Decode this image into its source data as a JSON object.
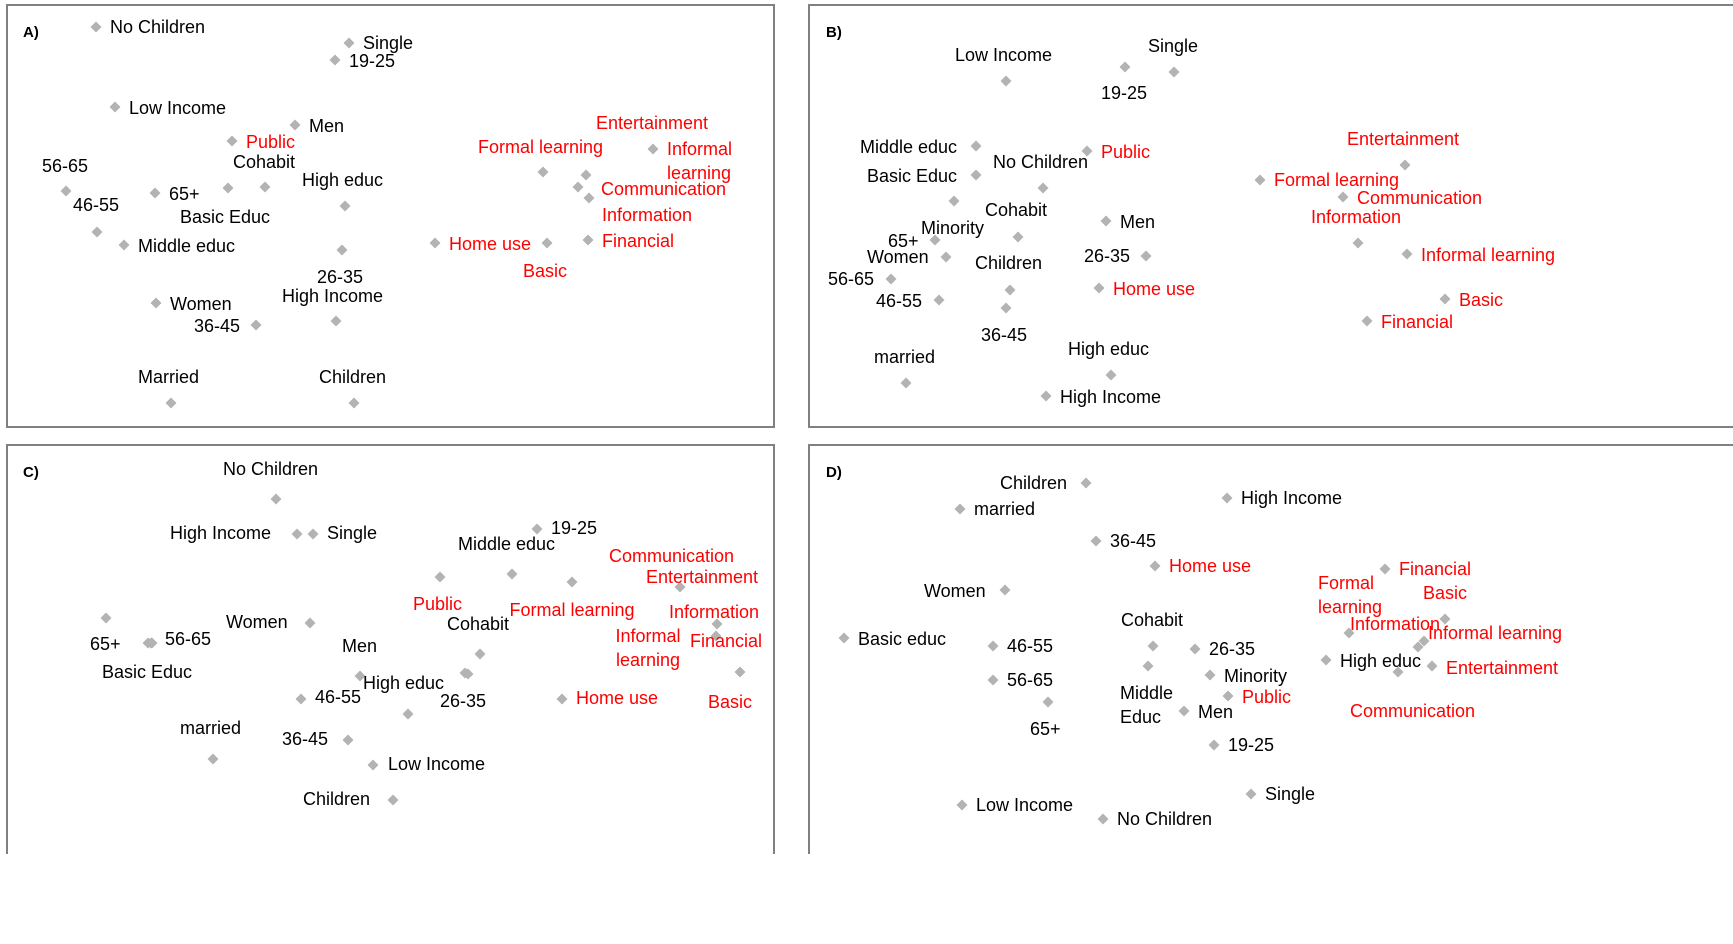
{
  "colors": {
    "marker": "#b3b3b3",
    "demographic": "#000000",
    "usage": "#ff0000",
    "frame": "#808080"
  },
  "chart_data": [
    {
      "type": "scatter",
      "panel_label": "A)",
      "points": [
        {
          "label": "No Children",
          "group": "demographic"
        },
        {
          "label": "Single",
          "group": "demographic"
        },
        {
          "label": "19-25",
          "group": "demographic"
        },
        {
          "label": "Low Income",
          "group": "demographic"
        },
        {
          "label": "Men",
          "group": "demographic"
        },
        {
          "label": "Public",
          "group": "usage"
        },
        {
          "label": "Cohabit",
          "group": "demographic"
        },
        {
          "label": "56-65",
          "group": "demographic"
        },
        {
          "label": "65+",
          "group": "demographic"
        },
        {
          "label": "Basic Educ",
          "group": "demographic"
        },
        {
          "label": "46-55",
          "group": "demographic"
        },
        {
          "label": "High educ",
          "group": "demographic"
        },
        {
          "label": "Middle educ",
          "group": "demographic"
        },
        {
          "label": "26-35",
          "group": "demographic"
        },
        {
          "label": "Women",
          "group": "demographic"
        },
        {
          "label": "High Income",
          "group": "demographic"
        },
        {
          "label": "36-45",
          "group": "demographic"
        },
        {
          "label": "Married",
          "group": "demographic"
        },
        {
          "label": "Children",
          "group": "demographic"
        },
        {
          "label": "Formal learning",
          "group": "usage"
        },
        {
          "label": "Entertainment",
          "group": "usage"
        },
        {
          "label": "Informal learning",
          "group": "usage"
        },
        {
          "label": "Communication",
          "group": "usage"
        },
        {
          "label": "Information",
          "group": "usage"
        },
        {
          "label": "Home use",
          "group": "usage"
        },
        {
          "label": "Basic",
          "group": "usage"
        },
        {
          "label": "Financial",
          "group": "usage"
        }
      ]
    },
    {
      "type": "scatter",
      "panel_label": "B)",
      "points": [
        {
          "label": "Low Income",
          "group": "demographic"
        },
        {
          "label": "Single",
          "group": "demographic"
        },
        {
          "label": "19-25",
          "group": "demographic"
        },
        {
          "label": "Middle educ",
          "group": "demographic"
        },
        {
          "label": "Public",
          "group": "usage"
        },
        {
          "label": "No Children",
          "group": "demographic"
        },
        {
          "label": "Basic Educ",
          "group": "demographic"
        },
        {
          "label": "Cohabit",
          "group": "demographic"
        },
        {
          "label": "Men",
          "group": "demographic"
        },
        {
          "label": "Minority",
          "group": "demographic"
        },
        {
          "label": "65+",
          "group": "demographic"
        },
        {
          "label": "Women",
          "group": "demographic"
        },
        {
          "label": "Children",
          "group": "demographic"
        },
        {
          "label": "26-35",
          "group": "demographic"
        },
        {
          "label": "56-65",
          "group": "demographic"
        },
        {
          "label": "Home use",
          "group": "usage"
        },
        {
          "label": "46-55",
          "group": "demographic"
        },
        {
          "label": "36-45",
          "group": "demographic"
        },
        {
          "label": "married",
          "group": "demographic"
        },
        {
          "label": "High educ",
          "group": "demographic"
        },
        {
          "label": "High Income",
          "group": "demographic"
        },
        {
          "label": "Entertainment",
          "group": "usage"
        },
        {
          "label": "Formal learning",
          "group": "usage"
        },
        {
          "label": "Communication",
          "group": "usage"
        },
        {
          "label": "Information",
          "group": "usage"
        },
        {
          "label": "Informal learning",
          "group": "usage"
        },
        {
          "label": "Basic",
          "group": "usage"
        },
        {
          "label": "Financial",
          "group": "usage"
        }
      ]
    },
    {
      "type": "scatter",
      "panel_label": "C)",
      "points": [
        {
          "label": "No Children",
          "group": "demographic"
        },
        {
          "label": "High Income",
          "group": "demographic"
        },
        {
          "label": "Single",
          "group": "demographic"
        },
        {
          "label": "19-25",
          "group": "demographic"
        },
        {
          "label": "Middle educ",
          "group": "demographic"
        },
        {
          "label": "Public",
          "group": "usage"
        },
        {
          "label": "Communication",
          "group": "usage"
        },
        {
          "label": "Entertainment",
          "group": "usage"
        },
        {
          "label": "65+",
          "group": "demographic"
        },
        {
          "label": "56-65",
          "group": "demographic"
        },
        {
          "label": "Women",
          "group": "demographic"
        },
        {
          "label": "Formal learning",
          "group": "usage"
        },
        {
          "label": "Cohabit",
          "group": "demographic"
        },
        {
          "label": "Informal learning",
          "group": "usage"
        },
        {
          "label": "Information",
          "group": "usage"
        },
        {
          "label": "Financial",
          "group": "usage"
        },
        {
          "label": "Basic Educ",
          "group": "demographic"
        },
        {
          "label": "Men",
          "group": "demographic"
        },
        {
          "label": "High educ",
          "group": "demographic"
        },
        {
          "label": "46-55",
          "group": "demographic"
        },
        {
          "label": "26-35",
          "group": "demographic"
        },
        {
          "label": "Home use",
          "group": "usage"
        },
        {
          "label": "Basic",
          "group": "usage"
        },
        {
          "label": "married",
          "group": "demographic"
        },
        {
          "label": "36-45",
          "group": "demographic"
        },
        {
          "label": "Low Income",
          "group": "demographic"
        },
        {
          "label": "Children",
          "group": "demographic"
        }
      ]
    },
    {
      "type": "scatter",
      "panel_label": "D)",
      "points": [
        {
          "label": "Children",
          "group": "demographic"
        },
        {
          "label": "High Income",
          "group": "demographic"
        },
        {
          "label": "married",
          "group": "demographic"
        },
        {
          "label": "36-45",
          "group": "demographic"
        },
        {
          "label": "Home use",
          "group": "usage"
        },
        {
          "label": "Financial",
          "group": "usage"
        },
        {
          "label": "Formal learning",
          "group": "usage"
        },
        {
          "label": "Basic",
          "group": "usage"
        },
        {
          "label": "Women",
          "group": "demographic"
        },
        {
          "label": "Information",
          "group": "usage"
        },
        {
          "label": "Informal learning",
          "group": "usage"
        },
        {
          "label": "Basic educ",
          "group": "demographic"
        },
        {
          "label": "Cohabit",
          "group": "demographic"
        },
        {
          "label": "46-55",
          "group": "demographic"
        },
        {
          "label": "26-35",
          "group": "demographic"
        },
        {
          "label": "High educ",
          "group": "demographic"
        },
        {
          "label": "Entertainment",
          "group": "usage"
        },
        {
          "label": "Minority",
          "group": "demographic"
        },
        {
          "label": "56-65",
          "group": "demographic"
        },
        {
          "label": "Middle Educ",
          "group": "demographic"
        },
        {
          "label": "Public",
          "group": "usage"
        },
        {
          "label": "Men",
          "group": "demographic"
        },
        {
          "label": "65+",
          "group": "demographic"
        },
        {
          "label": "Communication",
          "group": "usage"
        },
        {
          "label": "19-25",
          "group": "demographic"
        },
        {
          "label": "Single",
          "group": "demographic"
        },
        {
          "label": "Low Income",
          "group": "demographic"
        },
        {
          "label": "No Children",
          "group": "demographic"
        }
      ]
    }
  ]
}
